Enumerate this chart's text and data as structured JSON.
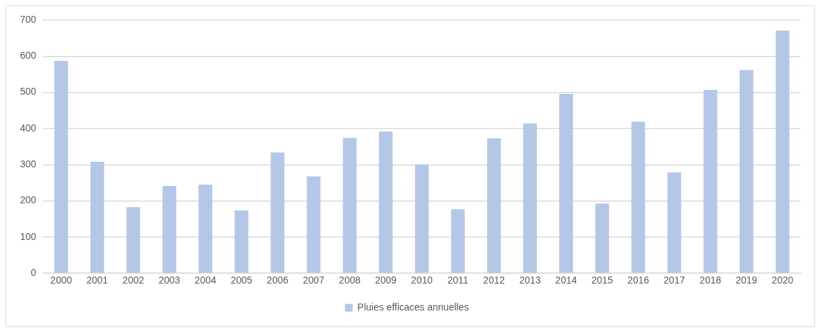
{
  "chart_data": {
    "type": "bar",
    "categories": [
      "2000",
      "2001",
      "2002",
      "2003",
      "2004",
      "2005",
      "2006",
      "2007",
      "2008",
      "2009",
      "2010",
      "2011",
      "2012",
      "2013",
      "2014",
      "2015",
      "2016",
      "2017",
      "2018",
      "2019",
      "2020"
    ],
    "series": [
      {
        "name": "Pluies efficaces annuelles",
        "color": "#b4c7e7",
        "values": [
          587,
          308,
          183,
          241,
          245,
          174,
          334,
          268,
          374,
          392,
          301,
          177,
          373,
          414,
          496,
          193,
          419,
          279,
          507,
          562,
          671
        ]
      }
    ],
    "ylim": [
      0,
      700
    ],
    "yticks": [
      0,
      100,
      200,
      300,
      400,
      500,
      600,
      700
    ],
    "grid": "y",
    "legend": "bottom"
  }
}
